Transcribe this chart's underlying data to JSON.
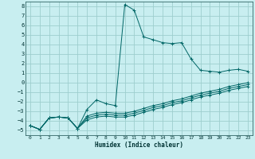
{
  "title": "",
  "xlabel": "Humidex (Indice chaleur)",
  "background_color": "#c8eef0",
  "grid_color": "#9ecece",
  "line_color": "#006666",
  "xlim": [
    -0.5,
    23.5
  ],
  "ylim": [
    -5.5,
    8.5
  ],
  "xticks": [
    0,
    1,
    2,
    3,
    4,
    5,
    6,
    7,
    8,
    9,
    10,
    11,
    12,
    13,
    14,
    15,
    16,
    17,
    18,
    19,
    20,
    21,
    22,
    23
  ],
  "yticks": [
    -5,
    -4,
    -3,
    -2,
    -1,
    0,
    1,
    2,
    3,
    4,
    5,
    6,
    7,
    8
  ],
  "lines": [
    {
      "x": [
        0,
        1,
        2,
        3,
        4,
        5,
        6,
        7,
        8,
        9,
        10,
        11,
        12,
        13,
        14,
        15,
        16,
        17,
        18,
        19,
        20,
        21,
        22,
        23
      ],
      "y": [
        -4.5,
        -4.9,
        -3.7,
        -3.6,
        -3.7,
        -4.8,
        -2.8,
        -1.8,
        -2.2,
        -2.4,
        8.2,
        7.6,
        4.8,
        4.5,
        4.2,
        4.1,
        4.2,
        2.5,
        1.3,
        1.2,
        1.1,
        1.3,
        1.4,
        1.2
      ]
    },
    {
      "x": [
        0,
        1,
        2,
        3,
        4,
        5,
        6,
        7,
        8,
        9,
        10,
        11,
        12,
        13,
        14,
        15,
        16,
        17,
        18,
        19,
        20,
        21,
        22,
        23
      ],
      "y": [
        -4.5,
        -4.9,
        -3.7,
        -3.6,
        -3.7,
        -4.8,
        -3.5,
        -3.2,
        -3.1,
        -3.2,
        -3.2,
        -3.0,
        -2.7,
        -2.4,
        -2.2,
        -1.9,
        -1.7,
        -1.4,
        -1.1,
        -0.9,
        -0.7,
        -0.4,
        -0.2,
        0.0
      ]
    },
    {
      "x": [
        0,
        1,
        2,
        3,
        4,
        5,
        6,
        7,
        8,
        9,
        10,
        11,
        12,
        13,
        14,
        15,
        16,
        17,
        18,
        19,
        20,
        21,
        22,
        23
      ],
      "y": [
        -4.5,
        -4.9,
        -3.7,
        -3.6,
        -3.7,
        -4.8,
        -3.7,
        -3.4,
        -3.3,
        -3.4,
        -3.4,
        -3.2,
        -2.9,
        -2.6,
        -2.4,
        -2.1,
        -1.9,
        -1.6,
        -1.3,
        -1.1,
        -0.9,
        -0.6,
        -0.4,
        -0.2
      ]
    },
    {
      "x": [
        0,
        1,
        2,
        3,
        4,
        5,
        6,
        7,
        8,
        9,
        10,
        11,
        12,
        13,
        14,
        15,
        16,
        17,
        18,
        19,
        20,
        21,
        22,
        23
      ],
      "y": [
        -4.5,
        -4.9,
        -3.7,
        -3.6,
        -3.7,
        -4.8,
        -3.9,
        -3.6,
        -3.5,
        -3.6,
        -3.6,
        -3.4,
        -3.1,
        -2.8,
        -2.6,
        -2.3,
        -2.1,
        -1.8,
        -1.5,
        -1.3,
        -1.1,
        -0.8,
        -0.6,
        -0.4
      ]
    }
  ]
}
